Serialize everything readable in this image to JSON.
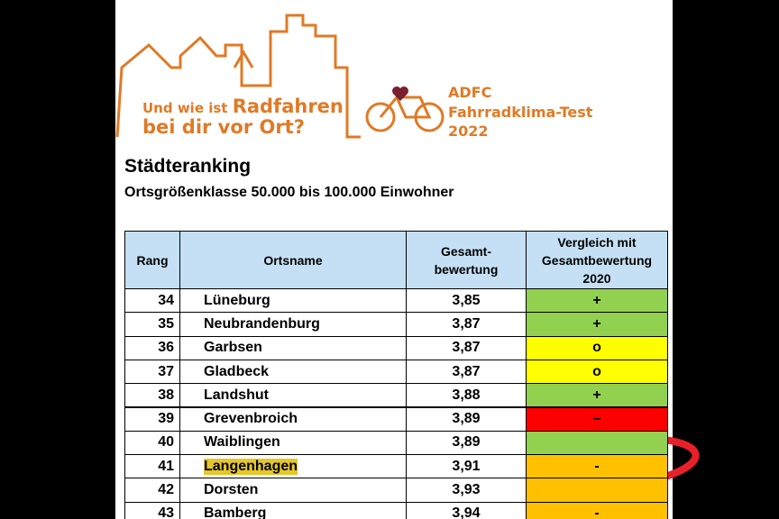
{
  "banner": {
    "slogan_line1_lead": "Und wie ist",
    "slogan_line1_bold": "Radfahren",
    "slogan_line2": "bei dir vor Ort?",
    "brand_line1": "ADFC",
    "brand_line2": "Fahrradklima-Test",
    "brand_line3": "2022"
  },
  "header": {
    "title": "Städteranking",
    "subtitle": "Ortsgrößenklasse 50.000 bis 100.000 Einwohner"
  },
  "table": {
    "columns": [
      "Rang",
      "Ortsname",
      "Gesamt-\nbewertung",
      "Vergleich mit\nGesamtbewertung\n2020"
    ],
    "rows": [
      {
        "rank": "34",
        "name": "Lüneburg",
        "score": "3,85",
        "comparison": "+",
        "color": "#92d050"
      },
      {
        "rank": "35",
        "name": "Neubrandenburg",
        "score": "3,87",
        "comparison": "+",
        "color": "#92d050"
      },
      {
        "rank": "36",
        "name": "Garbsen",
        "score": "3,87",
        "comparison": "o",
        "color": "#ffff00"
      },
      {
        "rank": "37",
        "name": "Gladbeck",
        "score": "3,87",
        "comparison": "o",
        "color": "#ffff00"
      },
      {
        "rank": "38",
        "name": "Landshut",
        "score": "3,88",
        "comparison": "+",
        "color": "#92d050"
      },
      {
        "rank": "39",
        "name": "Grevenbroich",
        "score": "3,89",
        "comparison": "–",
        "color": "#ff0000"
      },
      {
        "rank": "40",
        "name": "Waiblingen",
        "score": "3,89",
        "color": "#92d050"
      },
      {
        "rank": "41",
        "name": "Langenhagen",
        "score": "3,91",
        "comparison": "-",
        "color": "#ffc000",
        "highlight": true
      },
      {
        "rank": "42",
        "name": "Dorsten",
        "score": "3,93",
        "color": "#ffc000"
      },
      {
        "rank": "43",
        "name": "Bamberg",
        "score": "3,94",
        "comparison": "-",
        "color": "#ffc000"
      }
    ]
  }
}
